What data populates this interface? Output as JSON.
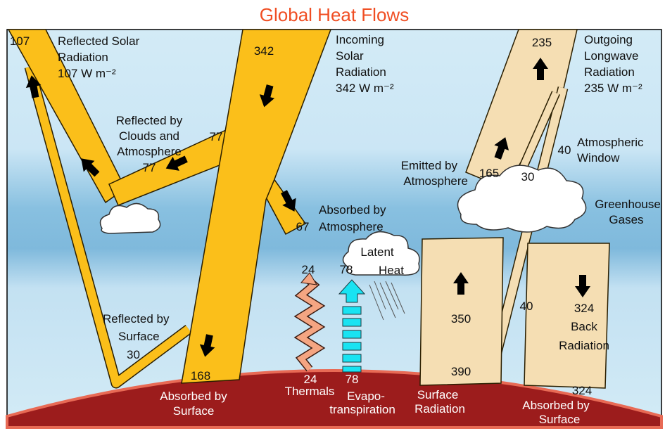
{
  "title": "Global Heat Flows",
  "reflected_solar": {
    "value": 107,
    "caption": [
      "Reflected Solar",
      "Radiation",
      "107 W m⁻²"
    ]
  },
  "incoming_solar": {
    "value": 342,
    "caption": [
      "Incoming",
      "Solar",
      "Radiation",
      "342 W m⁻²"
    ]
  },
  "reflected_clouds": {
    "value": 77,
    "caption": [
      "Reflected by",
      "Clouds and",
      "Atmosphere",
      "77"
    ]
  },
  "absorbed_atmosphere": {
    "value": 67,
    "caption": [
      "Absorbed by",
      "Atmosphere"
    ]
  },
  "reflected_surface": {
    "caption": [
      "Reflected by",
      "Surface",
      "30"
    ]
  },
  "absorbed_surface": {
    "value": 168,
    "caption": [
      "Absorbed by",
      "Surface"
    ]
  },
  "thermals": {
    "top": 24,
    "bottom": 24,
    "caption": [
      "Thermals"
    ]
  },
  "evapotranspiration": {
    "top": 78,
    "bottom": 78,
    "caption": [
      "Evapo-",
      "transpiration"
    ]
  },
  "latent_heat": [
    "Latent",
    "Heat"
  ],
  "surface_radiation": {
    "value": 350,
    "bottom": 390,
    "caption": [
      "Surface",
      "Radiation"
    ]
  },
  "window_lower": 40,
  "back_radiation": {
    "value": 324,
    "caption": [
      "Back",
      "Radiation"
    ]
  },
  "absorbed_back": {
    "value": 324,
    "caption": [
      "Absorbed by",
      "Surface"
    ]
  },
  "outgoing": {
    "value": 235,
    "caption": [
      "Outgoing",
      "Longwave",
      "Radiation",
      "235 W m⁻²"
    ]
  },
  "emitted_atmosphere": {
    "value": 165,
    "caption": [
      "Emitted by",
      "Atmosphere"
    ]
  },
  "cloud_window": 30,
  "window": {
    "value": 40,
    "caption": [
      "Atmospheric",
      "Window"
    ]
  },
  "greenhouse": [
    "Greenhouse",
    "Gases"
  ]
}
